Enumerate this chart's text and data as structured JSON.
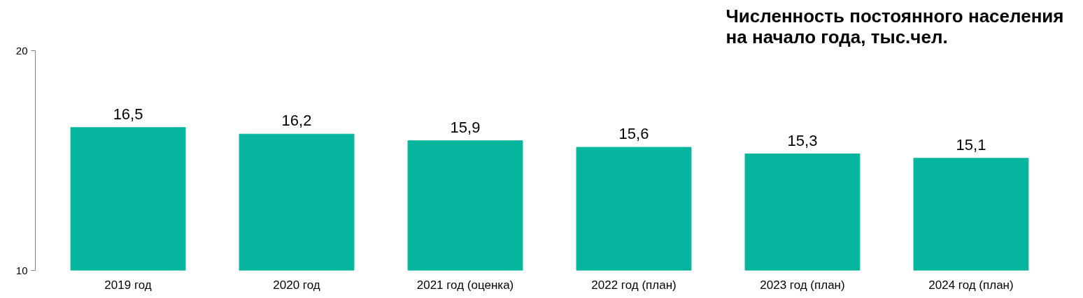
{
  "chart_data": {
    "type": "bar",
    "title": "Численность постоянного населения\nна начало года, тыс.чел.",
    "categories": [
      "2019 год",
      "2020 год",
      "2021 год (оценка)",
      "2022 год (план)",
      "2023 год (план)",
      "2024 год (план)"
    ],
    "values": [
      16.5,
      16.2,
      15.9,
      15.6,
      15.3,
      15.1
    ],
    "value_labels": [
      "16,5",
      "16,2",
      "15,9",
      "15,6",
      "15,3",
      "15,1"
    ],
    "color": "#06b59e",
    "ylim": [
      10,
      20
    ],
    "yticks": [
      10,
      20
    ],
    "grid": false
  }
}
